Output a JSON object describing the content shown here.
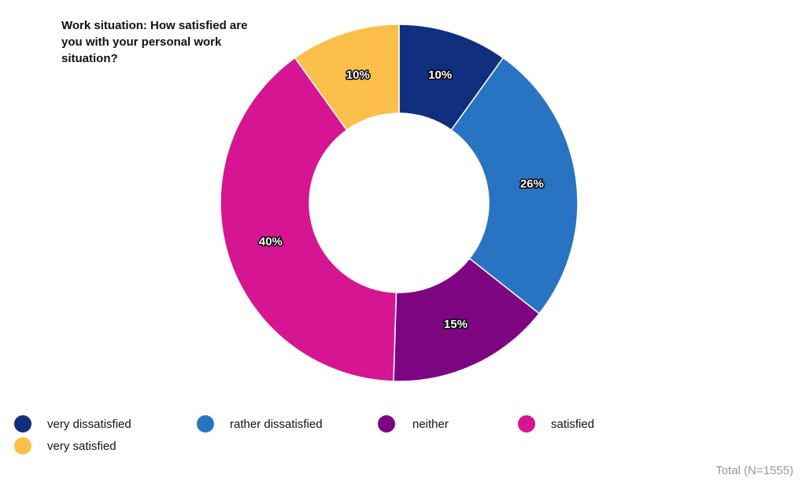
{
  "chart_data": {
    "type": "pie",
    "title": "Work situation: How satisfied are you with your personal work situation?",
    "categories": [
      "very dissatisfied",
      "rather dissatisfied",
      "neither",
      "satisfied",
      "very satisfied"
    ],
    "values": [
      10,
      26,
      15,
      40,
      10
    ],
    "value_labels": [
      "10%",
      "26%",
      "15%",
      "40%",
      "10%"
    ],
    "colors": [
      "#122f7f",
      "#2874c2",
      "#7e0582",
      "#d51592",
      "#fcbf4b"
    ],
    "donut": true,
    "legend_position": "bottom",
    "footnote": "Total (N=1555)"
  }
}
